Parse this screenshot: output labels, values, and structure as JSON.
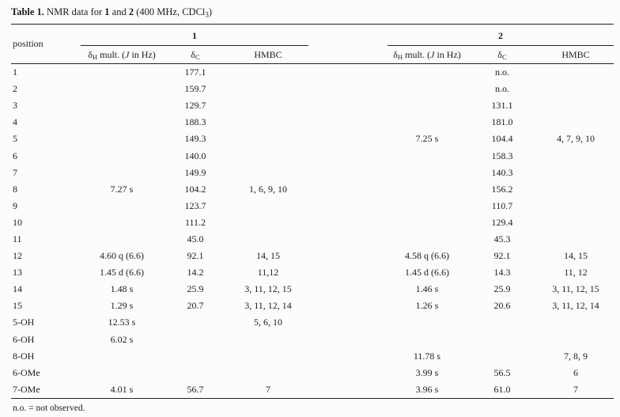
{
  "title": {
    "bold_label": "Table 1.",
    "text_after_label": " NMR data for ",
    "compound_1": "1",
    "and_text": " and ",
    "compound_2": "2",
    "conditions_pre": " (400 MHz, CDCl",
    "chlorine_sub": "3",
    "conditions_close": ")"
  },
  "table": {
    "position_header": "position",
    "group_1_label": "1",
    "group_2_label": "2",
    "col_dh": {
      "delta": "δ",
      "sub": "H",
      "mult_pre": " mult. (",
      "j_italic": "J",
      "mult_post": " in Hz)"
    },
    "col_dc": {
      "delta": "δ",
      "sub": "C"
    },
    "col_hmbc": "HMBC",
    "rows": [
      {
        "position": "1",
        "c1_dh": "",
        "c1_dc": "177.1",
        "c1_hmbc": "",
        "c2_dh": "",
        "c2_dc": "n.o.",
        "c2_hmbc": ""
      },
      {
        "position": "2",
        "c1_dh": "",
        "c1_dc": "159.7",
        "c1_hmbc": "",
        "c2_dh": "",
        "c2_dc": "n.o.",
        "c2_hmbc": ""
      },
      {
        "position": "3",
        "c1_dh": "",
        "c1_dc": "129.7",
        "c1_hmbc": "",
        "c2_dh": "",
        "c2_dc": "131.1",
        "c2_hmbc": ""
      },
      {
        "position": "4",
        "c1_dh": "",
        "c1_dc": "188.3",
        "c1_hmbc": "",
        "c2_dh": "",
        "c2_dc": "181.0",
        "c2_hmbc": ""
      },
      {
        "position": "5",
        "c1_dh": "",
        "c1_dc": "149.3",
        "c1_hmbc": "",
        "c2_dh": "7.25 s",
        "c2_dc": "104.4",
        "c2_hmbc": "4, 7, 9, 10"
      },
      {
        "position": "6",
        "c1_dh": "",
        "c1_dc": "140.0",
        "c1_hmbc": "",
        "c2_dh": "",
        "c2_dc": "158.3",
        "c2_hmbc": ""
      },
      {
        "position": "7",
        "c1_dh": "",
        "c1_dc": "149.9",
        "c1_hmbc": "",
        "c2_dh": "",
        "c2_dc": "140.3",
        "c2_hmbc": ""
      },
      {
        "position": "8",
        "c1_dh": "7.27 s",
        "c1_dc": "104.2",
        "c1_hmbc": "1, 6, 9, 10",
        "c2_dh": "",
        "c2_dc": "156.2",
        "c2_hmbc": ""
      },
      {
        "position": "9",
        "c1_dh": "",
        "c1_dc": "123.7",
        "c1_hmbc": "",
        "c2_dh": "",
        "c2_dc": "110.7",
        "c2_hmbc": ""
      },
      {
        "position": "10",
        "c1_dh": "",
        "c1_dc": "111.2",
        "c1_hmbc": "",
        "c2_dh": "",
        "c2_dc": "129.4",
        "c2_hmbc": ""
      },
      {
        "position": "11",
        "c1_dh": "",
        "c1_dc": "45.0",
        "c1_hmbc": "",
        "c2_dh": "",
        "c2_dc": "45.3",
        "c2_hmbc": ""
      },
      {
        "position": "12",
        "c1_dh": "4.60 q (6.6)",
        "c1_dc": "92.1",
        "c1_hmbc": "14, 15",
        "c2_dh": "4.58 q (6.6)",
        "c2_dc": "92.1",
        "c2_hmbc": "14, 15"
      },
      {
        "position": "13",
        "c1_dh": "1.45 d (6.6)",
        "c1_dc": "14.2",
        "c1_hmbc": "11,12",
        "c2_dh": "1.45 d (6.6)",
        "c2_dc": "14.3",
        "c2_hmbc": "11, 12"
      },
      {
        "position": "14",
        "c1_dh": "1.48 s",
        "c1_dc": "25.9",
        "c1_hmbc": "3, 11, 12, 15",
        "c2_dh": "1.46 s",
        "c2_dc": "25.9",
        "c2_hmbc": "3, 11, 12, 15"
      },
      {
        "position": "15",
        "c1_dh": "1.29 s",
        "c1_dc": "20.7",
        "c1_hmbc": "3, 11, 12, 14",
        "c2_dh": "1.26 s",
        "c2_dc": "20.6",
        "c2_hmbc": "3, 11, 12, 14"
      },
      {
        "position": "5-OH",
        "c1_dh": "12.53 s",
        "c1_dc": "",
        "c1_hmbc": "5, 6, 10",
        "c2_dh": "",
        "c2_dc": "",
        "c2_hmbc": ""
      },
      {
        "position": "6-OH",
        "c1_dh": "6.02 s",
        "c1_dc": "",
        "c1_hmbc": "",
        "c2_dh": "",
        "c2_dc": "",
        "c2_hmbc": ""
      },
      {
        "position": "8-OH",
        "c1_dh": "",
        "c1_dc": "",
        "c1_hmbc": "",
        "c2_dh": "11.78 s",
        "c2_dc": "",
        "c2_hmbc": "7, 8, 9"
      },
      {
        "position": "6-OMe",
        "c1_dh": "",
        "c1_dc": "",
        "c1_hmbc": "",
        "c2_dh": "3.99 s",
        "c2_dc": "56.5",
        "c2_hmbc": "6"
      },
      {
        "position": "7-OMe",
        "c1_dh": "4.01 s",
        "c1_dc": "56.7",
        "c1_hmbc": "7",
        "c2_dh": "3.96 s",
        "c2_dc": "61.0",
        "c2_hmbc": "7"
      }
    ]
  },
  "footnote": "n.o. = not observed."
}
